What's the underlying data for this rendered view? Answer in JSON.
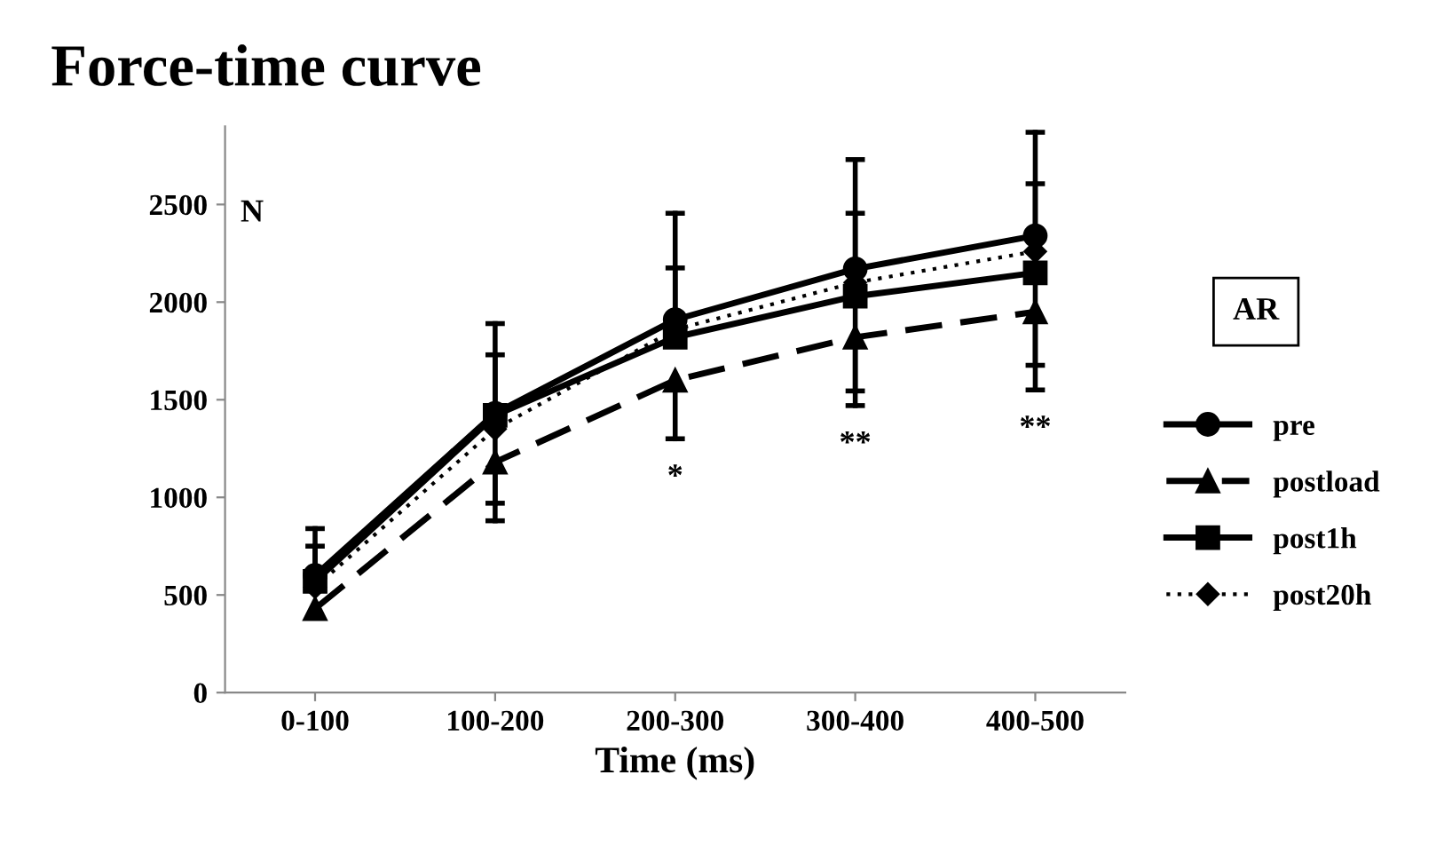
{
  "chart_data": {
    "type": "line",
    "title": "Force-time curve",
    "xlabel": "Time (ms)",
    "ylabel": "N",
    "legend_title": "AR",
    "categories": [
      "0-100",
      "100-200",
      "200-300",
      "300-400",
      "400-500"
    ],
    "series": [
      {
        "name": "pre",
        "color": "#000000",
        "marker": "circle",
        "line_style": "solid",
        "values": [
          600,
          1430,
          1910,
          2170,
          2340
        ],
        "errors": [
          [
            600,
            840
          ],
          [
            970,
            1890
          ],
          [
            1910,
            2455
          ],
          [
            1545,
            2730
          ],
          [
            2340,
            2870
          ]
        ]
      },
      {
        "name": "postload",
        "color": "#000000",
        "marker": "triangle",
        "line_style": "dashed",
        "values": [
          430,
          1180,
          1600,
          1820,
          1950
        ],
        "errors": [
          null,
          [
            880,
            1180
          ],
          [
            1300,
            1600
          ],
          [
            1470,
            1820
          ],
          [
            1550,
            1950
          ]
        ]
      },
      {
        "name": "post1h",
        "color": "#000000",
        "marker": "square",
        "line_style": "solid",
        "values": [
          570,
          1420,
          1820,
          2030,
          2150
        ],
        "errors": [
          [
            570,
            750
          ],
          [
            1420,
            1730
          ],
          [
            1820,
            2175
          ],
          [
            2030,
            2455
          ],
          [
            1676,
            2606
          ]
        ]
      },
      {
        "name": "post20h",
        "color": "#000000",
        "marker": "diamond",
        "line_style": "dotted",
        "values": [
          540,
          1350,
          1860,
          2100,
          2260
        ]
      }
    ],
    "annotations": [
      "*",
      "**",
      "**"
    ],
    "ylim": [
      0,
      2900
    ],
    "yticks": [
      0,
      500,
      1000,
      1500,
      2000,
      2500
    ],
    "grid": false,
    "legend": "right"
  }
}
